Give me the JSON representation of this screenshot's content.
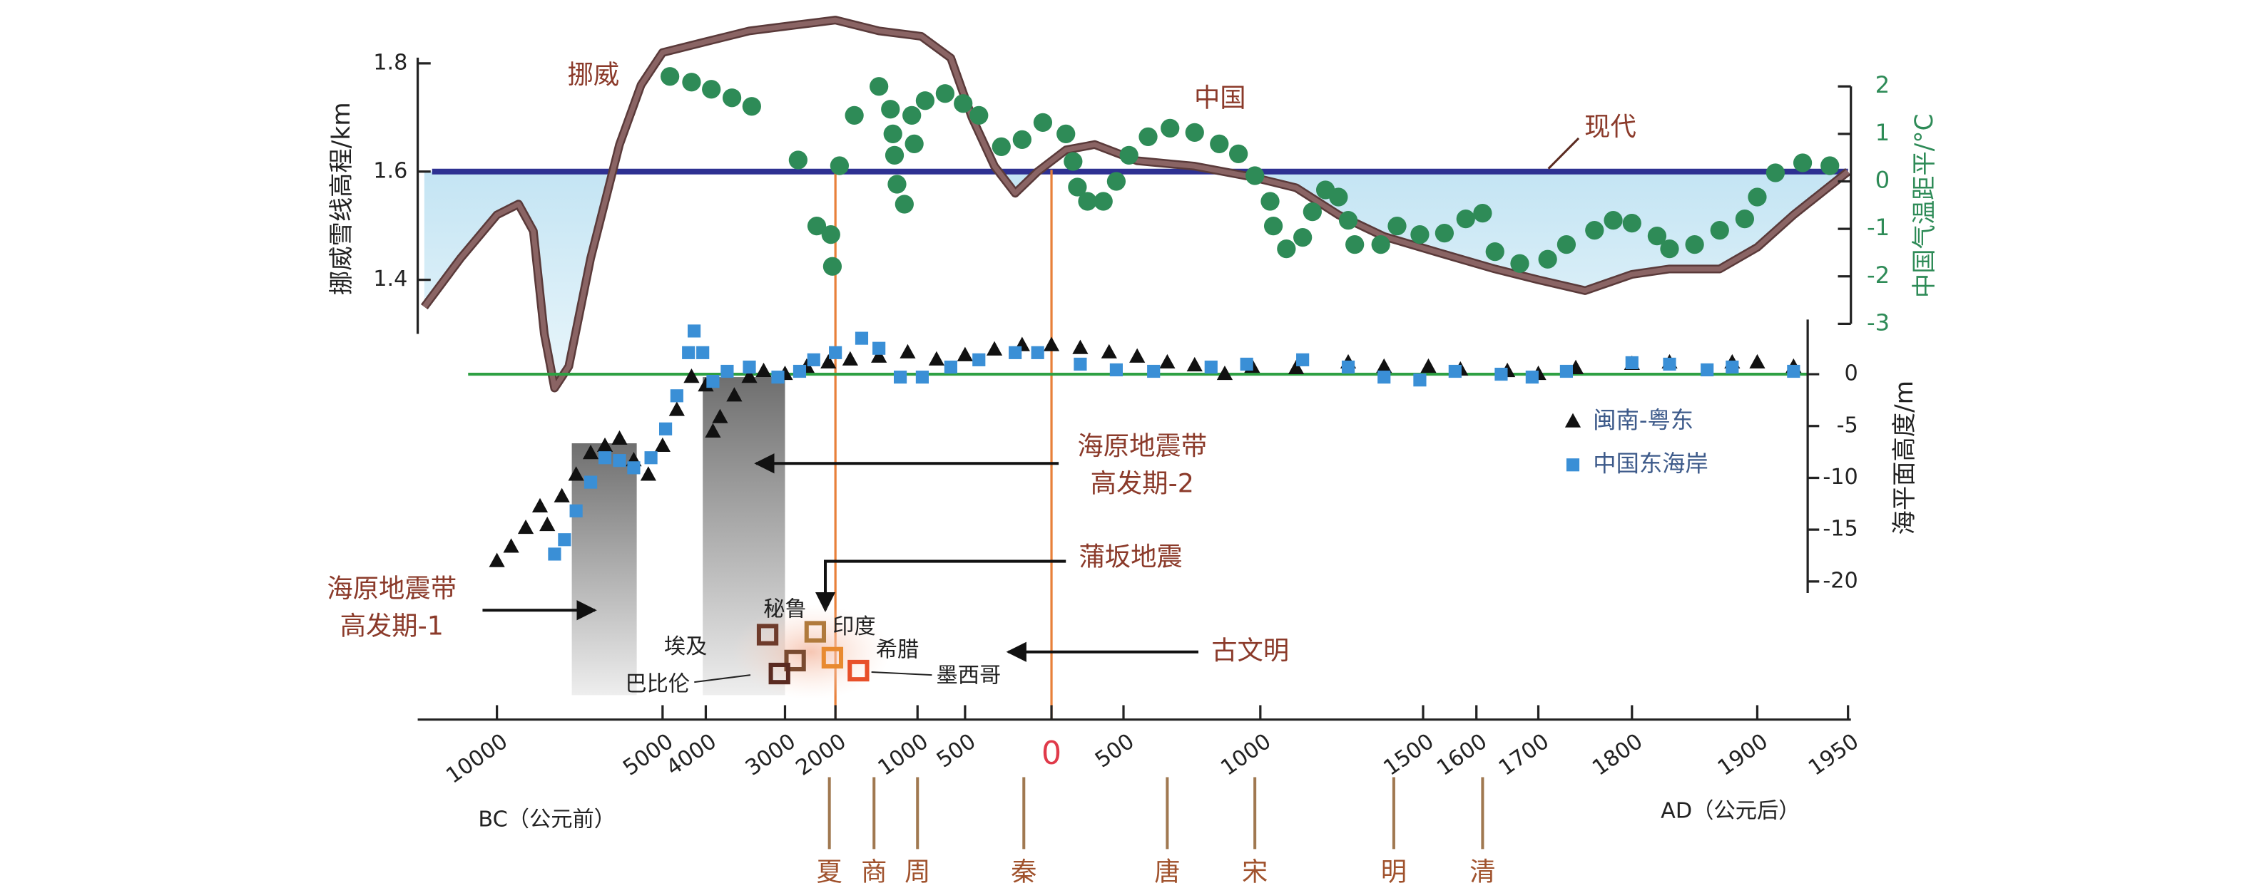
{
  "chart_data": [
    {
      "type": "line",
      "ylabel": "挪威雪线高程/km",
      "x": [
        -12200,
        -11100,
        -10000,
        -9350,
        -8900,
        -8570,
        -8260,
        -7830,
        -7170,
        -6300,
        -5650,
        -5000,
        -4000,
        -3450,
        -2860,
        -2000,
        -1470,
        -960,
        -650,
        -460,
        -330,
        -210,
        -80,
        100,
        300,
        550,
        760,
        970,
        1110,
        1240,
        1380,
        1530,
        1630,
        1700,
        1750,
        1800,
        1830,
        1870,
        1900,
        1920,
        1950
      ],
      "series": [
        {
          "name": "挪威",
          "color": "#8a6464",
          "values": [
            1.35,
            1.44,
            1.52,
            1.54,
            1.49,
            1.3,
            1.2,
            1.24,
            1.44,
            1.65,
            1.76,
            1.82,
            1.84,
            1.86,
            1.87,
            1.88,
            1.86,
            1.85,
            1.81,
            1.7,
            1.61,
            1.56,
            1.6,
            1.64,
            1.65,
            1.62,
            1.61,
            1.59,
            1.57,
            1.52,
            1.48,
            1.45,
            1.42,
            1.4,
            1.38,
            1.41,
            1.42,
            1.42,
            1.46,
            1.52,
            1.6
          ]
        }
      ],
      "reference": {
        "label": "现代",
        "value": 1.6,
        "color": "#2e3192"
      },
      "ylim": [
        1.3,
        1.8
      ],
      "yticks": [
        1.4,
        1.6,
        1.8
      ],
      "xlim": [
        -12400,
        1950
      ],
      "xticks": [
        {
          "value": -10000,
          "label": "10000"
        },
        {
          "value": -5000,
          "label": "5000"
        },
        {
          "value": -4000,
          "label": "4000"
        },
        {
          "value": -3000,
          "label": "3000"
        },
        {
          "value": -2000,
          "label": "2000"
        },
        {
          "value": -1000,
          "label": "1000"
        },
        {
          "value": -500,
          "label": "500"
        },
        0,
        500,
        1000,
        1500,
        1600,
        1700,
        1800,
        1900,
        1950
      ],
      "era_labels": [
        "BC（公元前）",
        "AD（公元后）"
      ],
      "dynasties": [
        {
          "name": "夏",
          "year": -2120
        },
        {
          "name": "商",
          "year": -1530
        },
        {
          "name": "周",
          "year": -1000
        },
        {
          "name": "秦",
          "year": -160
        },
        {
          "name": "唐",
          "year": 660
        },
        {
          "name": "宋",
          "year": 980
        },
        {
          "name": "明",
          "year": 1410
        },
        {
          "name": "清",
          "year": 1610
        }
      ],
      "events": [
        {
          "label": "蒲坂地震",
          "year": -2000
        }
      ],
      "earthquake_periods": [
        {
          "label": [
            "海原地震带",
            "高发期-1"
          ],
          "start": -7740,
          "end": -5780
        },
        {
          "label": [
            "海原地震带",
            "高发期-2"
          ],
          "start": -4070,
          "end": -3000
        }
      ],
      "civilizations_label": "古文明",
      "civilizations": [
        {
          "name": "秘鲁",
          "year": -3220
        },
        {
          "name": "印度",
          "year": -2400
        },
        {
          "name": "埃及",
          "year": -2800
        },
        {
          "name": "希腊",
          "year": -2060
        },
        {
          "name": "巴比伦",
          "year": -3070
        },
        {
          "name": "墨西哥",
          "year": -1720
        }
      ]
    },
    {
      "type": "scatter",
      "ylabel": "中国气温距平/°C",
      "series": [
        {
          "name": "中国",
          "color": "#2e8b57",
          "x": [
            -4830,
            -4330,
            -3930,
            -3670,
            -3420,
            -2740,
            -2370,
            -2090,
            -2060,
            -1950,
            -1770,
            -1470,
            -1330,
            -1300,
            -1280,
            -1250,
            -1160,
            -1040,
            -1070,
            -920,
            -710,
            -520,
            -420,
            -290,
            -170,
            -50,
            100,
            150,
            180,
            250,
            360,
            450,
            520,
            590,
            670,
            760,
            850,
            920,
            980,
            1030,
            1040,
            1080,
            1130,
            1160,
            1200,
            1240,
            1270,
            1290,
            1370,
            1420,
            1490,
            1540,
            1580,
            1610,
            1630,
            1670,
            1710,
            1730,
            1760,
            1780,
            1800,
            1820,
            1830,
            1850,
            1870,
            1890,
            1900,
            1910,
            1925,
            1940
          ],
          "values": [
            2.21,
            2.09,
            1.94,
            1.76,
            1.58,
            0.45,
            -0.94,
            -1.12,
            -1.79,
            0.33,
            1.39,
            2.0,
            1.52,
            1.0,
            0.55,
            -0.06,
            -0.48,
            0.79,
            1.39,
            1.7,
            1.85,
            1.64,
            1.39,
            0.73,
            0.88,
            1.24,
            1.0,
            0.42,
            -0.12,
            -0.42,
            -0.42,
            0,
            0.55,
            0.94,
            1.12,
            1.03,
            0.79,
            0.58,
            0.12,
            -0.42,
            -0.94,
            -1.42,
            -1.18,
            -0.64,
            -0.18,
            -0.33,
            -0.82,
            -1.33,
            -1.33,
            -0.94,
            -1.12,
            -1.09,
            -0.79,
            -0.67,
            -1.48,
            -1.73,
            -1.64,
            -1.33,
            -1.03,
            -0.82,
            -0.88,
            -1.15,
            -1.42,
            -1.33,
            -1.03,
            -0.79,
            -0.33,
            0.18,
            0.39,
            0.33
          ]
        }
      ],
      "ylim": [
        -3,
        2
      ],
      "yticks": [
        2,
        1,
        0,
        -1,
        -2,
        -3
      ]
    },
    {
      "type": "scatter",
      "ylabel": "海平面高度/m",
      "legend": "right",
      "series": [
        {
          "name": "闽南-粤东",
          "color": "#111111",
          "marker": "triangle",
          "x": [
            -10000,
            -9570,
            -9130,
            -8700,
            -8480,
            -8040,
            -7610,
            -7170,
            -6740,
            -6300,
            -5870,
            -5430,
            -5000,
            -4670,
            -4330,
            -4000,
            -3910,
            -3820,
            -3640,
            -3450,
            -3270,
            -3000,
            -2570,
            -2140,
            -1820,
            -1470,
            -1120,
            -800,
            -500,
            -330,
            -170,
            0,
            200,
            400,
            550,
            660,
            760,
            870,
            970,
            1110,
            1270,
            1380,
            1510,
            1570,
            1650,
            1700,
            1740,
            1800,
            1830,
            1880,
            1900,
            1920
          ],
          "values": [
            -18.06,
            -16.67,
            -14.86,
            -12.78,
            -14.58,
            -11.81,
            -9.72,
            -7.64,
            -6.94,
            -6.25,
            -8.33,
            -9.72,
            -6.94,
            -3.47,
            -0.28,
            -1.11,
            -5.56,
            -4.17,
            -2.08,
            -0.28,
            0.28,
            0,
            0.69,
            1.11,
            1.39,
            1.67,
            2.08,
            1.39,
            1.81,
            2.36,
            2.78,
            2.78,
            2.5,
            2.08,
            1.67,
            1.11,
            0.83,
            0,
            0.69,
            0.56,
            1.11,
            0.69,
            0.69,
            0.42,
            0.28,
            0,
            0.56,
            0.97,
            1.11,
            1.11,
            1.11,
            0.69
          ]
        },
        {
          "name": "中国东海岸",
          "color": "#3a8fd6",
          "marker": "square",
          "x": [
            -8260,
            -7960,
            -7610,
            -7170,
            -6740,
            -6300,
            -5870,
            -5350,
            -4930,
            -4670,
            -4400,
            -4270,
            -4070,
            -3910,
            -3730,
            -3450,
            -3090,
            -2710,
            -2430,
            -2000,
            -1680,
            -1470,
            -1210,
            -950,
            -650,
            -420,
            -210,
            -80,
            200,
            450,
            610,
            820,
            950,
            1130,
            1270,
            1380,
            1490,
            1560,
            1640,
            1690,
            1730,
            1800,
            1830,
            1860,
            1880,
            1920
          ],
          "values": [
            -17.36,
            -15.97,
            -13.19,
            -10.42,
            -8.06,
            -8.33,
            -9.03,
            -8.06,
            -5.28,
            -2.08,
            2.08,
            4.17,
            2.08,
            -0.69,
            0.28,
            0.69,
            -0.28,
            0.28,
            1.39,
            2.08,
            3.47,
            2.5,
            -0.28,
            -0.28,
            0.69,
            1.39,
            2.08,
            2.08,
            0.97,
            0.42,
            0.28,
            0.69,
            0.97,
            1.39,
            0.69,
            -0.28,
            -0.56,
            0.28,
            0,
            -0.28,
            0.28,
            1.11,
            0.97,
            0.42,
            0.69,
            0.28
          ]
        }
      ],
      "ylim": [
        -21,
        5
      ],
      "yticks": [
        0,
        -5,
        -10,
        -15,
        -20
      ],
      "zero_line_color": "#2ea043"
    }
  ]
}
